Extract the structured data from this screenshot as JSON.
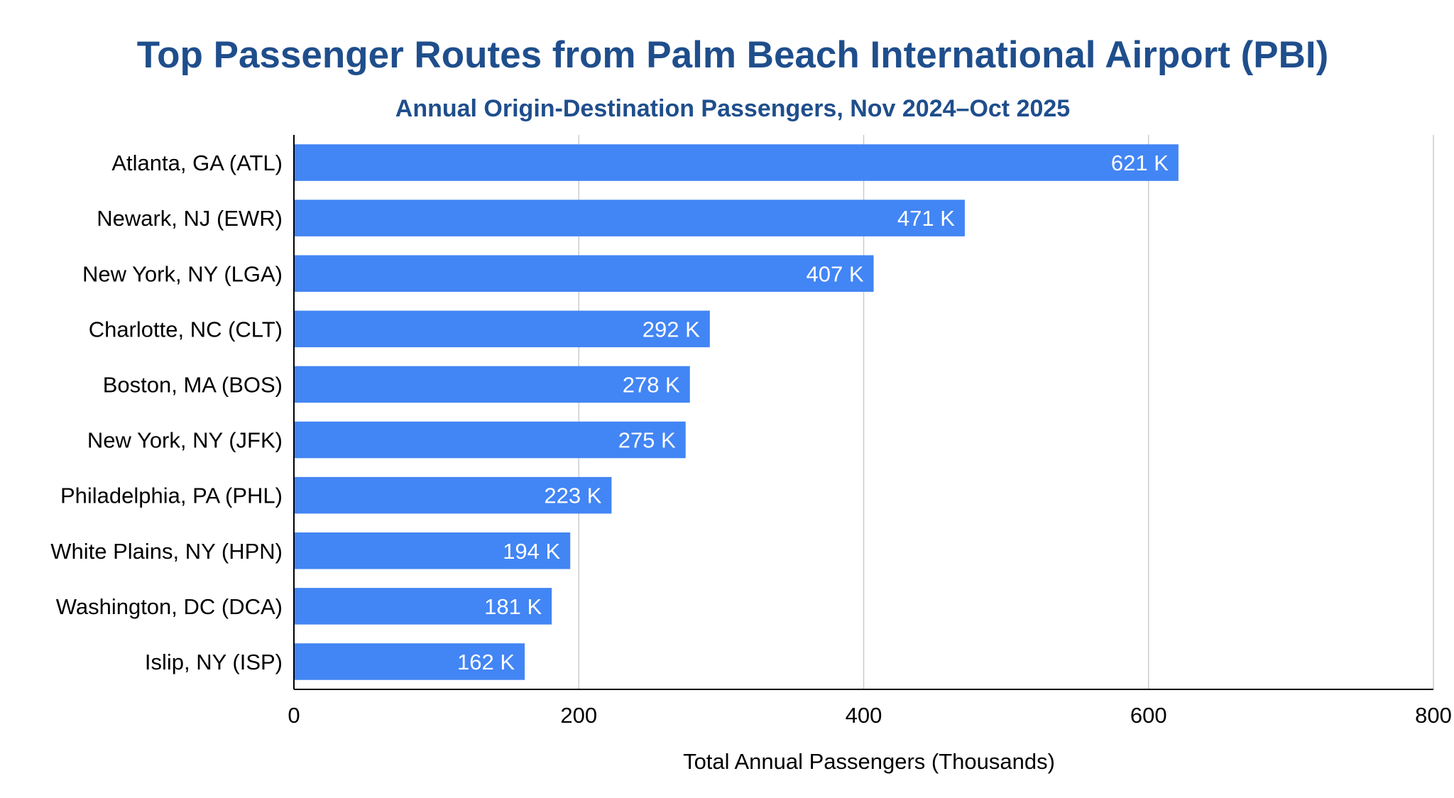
{
  "chart_data": {
    "type": "bar",
    "orientation": "horizontal",
    "title": "Top Passenger Routes from Palm Beach International Airport (PBI)",
    "subtitle": "Annual Origin-Destination Passengers, Nov 2024–Oct 2025",
    "xlabel": "Total Annual Passengers (Thousands)",
    "ylabel": "",
    "categories": [
      "Atlanta, GA (ATL)",
      "Newark, NJ (EWR)",
      "New York, NY (LGA)",
      "Charlotte, NC (CLT)",
      "Boston, MA (BOS)",
      "New York, NY (JFK)",
      "Philadelphia, PA (PHL)",
      "White Plains, NY (HPN)",
      "Washington, DC (DCA)",
      "Islip, NY (ISP)"
    ],
    "values": [
      621,
      471,
      407,
      292,
      278,
      275,
      223,
      194,
      181,
      162
    ],
    "value_labels": [
      "621 K",
      "471 K",
      "407 K",
      "292 K",
      "278 K",
      "275 K",
      "223 K",
      "194 K",
      "181 K",
      "162 K"
    ],
    "xlim": [
      0,
      800
    ],
    "xticks": [
      0,
      200,
      400,
      600,
      800
    ],
    "xtick_labels": [
      "0",
      "200",
      "400",
      "600",
      "800"
    ],
    "grid": true,
    "legend": "none",
    "colors": {
      "bar": "#4285f4",
      "title": "#1f4e8c",
      "grid": "#cccccc",
      "axis": "#000000",
      "bar_label": "#ffffff"
    }
  }
}
